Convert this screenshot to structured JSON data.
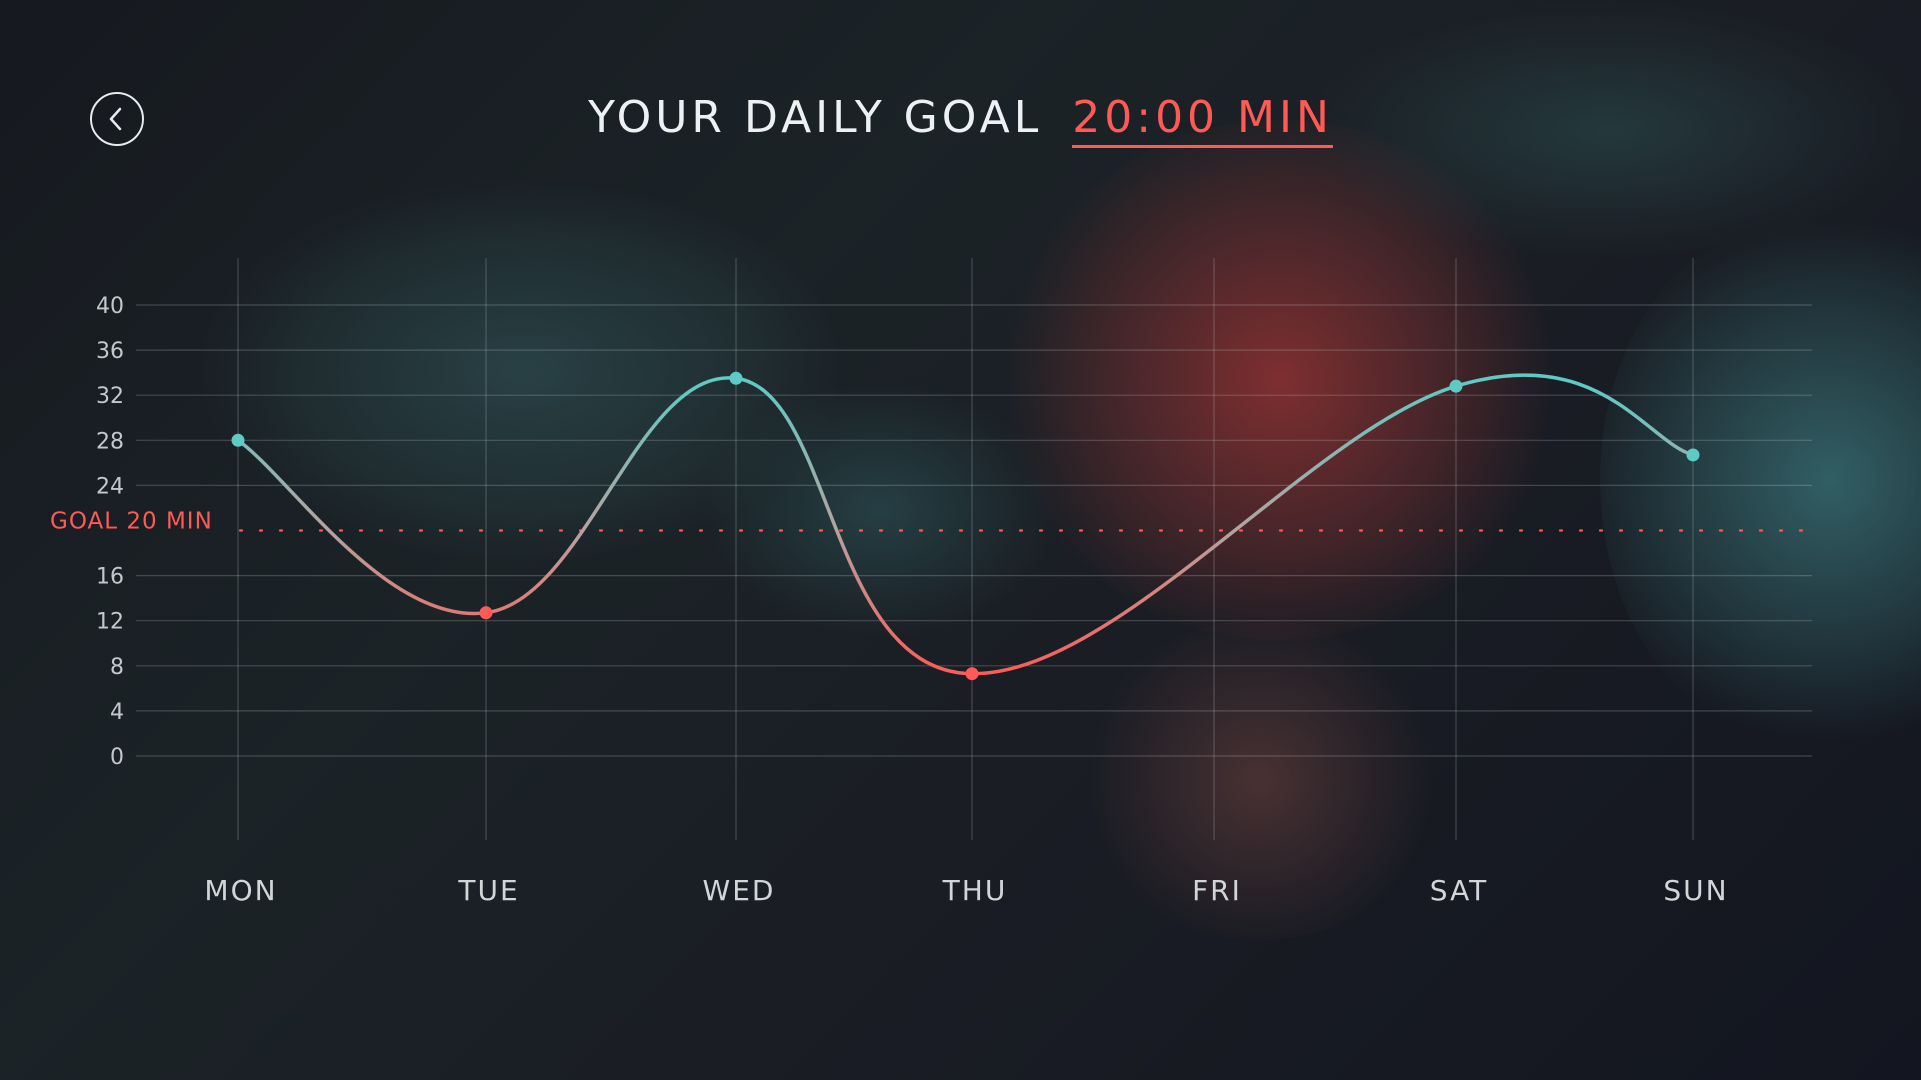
{
  "header": {
    "title": "YOUR DAILY GOAL",
    "goal_value": "20:00 MIN"
  },
  "icons": {
    "back": "chevron-left-icon"
  },
  "colors": {
    "accent_red": "#ff5a55",
    "accent_teal": "#5fc9c4",
    "text": "#eef1f3"
  },
  "chart_data": {
    "type": "line",
    "categories": [
      "MON",
      "TUE",
      "WED",
      "THU",
      "FRI",
      "SAT",
      "SUN"
    ],
    "values": [
      28,
      12.7,
      33.5,
      7.3,
      null,
      32.8,
      26.7
    ],
    "yticks": [
      0,
      4,
      8,
      12,
      16,
      24,
      28,
      32,
      36,
      40
    ],
    "ylim": [
      0,
      40
    ],
    "goal": {
      "value": 20,
      "label": "GOAL 20 MIN"
    },
    "grid": true,
    "smooth": true
  }
}
